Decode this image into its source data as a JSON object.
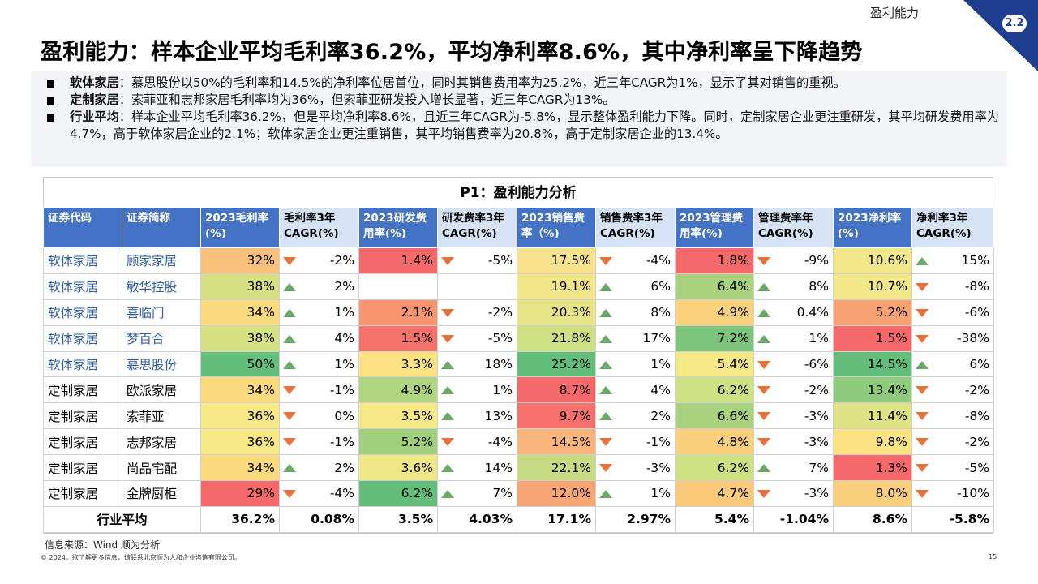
{
  "section_label": "盈利能力",
  "section_number": "2.2",
  "title": "盈利能力：样本企业平均毛利率36.2%，平均净利率8.6%，其中净利率呈下降趋势",
  "summary": [
    {
      "head": "软体家居",
      "text": "：慕思股份以50%的毛利率和14.5%的净利率位居首位，同时其销售费用率为25.2%，近三年CAGR为1%，显示了其对销售的重视。"
    },
    {
      "head": "定制家居",
      "text": "：索菲亚和志邦家居毛利率均为36%，但索菲亚研发投入增长显著，近三年CAGR为13%。"
    },
    {
      "head": "行业平均",
      "text": "：样本企业平均毛利率36.2%，但是平均净利率8.6%，且近三年CAGR为-5.8%，显示整体盈利能力下降。同时，定制家居企业更注重研发，其平均研发费用率为4.7%，高于软体家居企业的2.1%；软体家居企业更注重销售，其平均销售费率为20.8%，高于定制家居企业的13.4%。"
    }
  ],
  "table": {
    "title": "P1：盈利能力分析",
    "headers": [
      "证券代码",
      "证券简称",
      "2023毛利率(%)",
      "毛利率3年CAGR(%)",
      "2023研发费用率(%)",
      "研发费率3年CAGR(%)",
      "2023销售费率（%)",
      "销售费率3年CAGR(%)",
      "2023管理费用率(%)",
      "管理费率年CAGR(%)",
      "2023净利率(%)",
      "净利率3年CAGR(%)"
    ],
    "rows": [
      {
        "code": "软体家居",
        "name": "顾家家居",
        "cells": [
          {
            "v": "32%",
            "bg": "#f8c07a"
          },
          {
            "v": "-2%",
            "dir": "down"
          },
          {
            "v": "1.4%",
            "bg": "#f5696b"
          },
          {
            "v": "-5%",
            "dir": "down"
          },
          {
            "v": "17.5%",
            "bg": "#f9e28c"
          },
          {
            "v": "-4%",
            "dir": "down"
          },
          {
            "v": "1.8%",
            "bg": "#f5696b"
          },
          {
            "v": "-9%",
            "dir": "down"
          },
          {
            "v": "10.6%",
            "bg": "#f2e78a"
          },
          {
            "v": "15%",
            "dir": "up"
          }
        ]
      },
      {
        "code": "软体家居",
        "name": "敏华控股",
        "cells": [
          {
            "v": "38%",
            "bg": "#d6e184"
          },
          {
            "v": "2%",
            "dir": "up"
          },
          {
            "v": "",
            "bg": "#ffffff"
          },
          {
            "v": "",
            "dir": ""
          },
          {
            "v": "19.1%",
            "bg": "#f3e689"
          },
          {
            "v": "6%",
            "dir": "up"
          },
          {
            "v": "6.4%",
            "bg": "#a9d27f"
          },
          {
            "v": "8%",
            "dir": "up"
          },
          {
            "v": "10.7%",
            "bg": "#f2e78a"
          },
          {
            "v": "-8%",
            "dir": "down"
          }
        ]
      },
      {
        "code": "软体家居",
        "name": "喜临门",
        "cells": [
          {
            "v": "34%",
            "bg": "#fbd97f"
          },
          {
            "v": "1%",
            "dir": "up"
          },
          {
            "v": "2.1%",
            "bg": "#f8946f"
          },
          {
            "v": "-2%",
            "dir": "down"
          },
          {
            "v": "20.3%",
            "bg": "#e6e487"
          },
          {
            "v": "8%",
            "dir": "up"
          },
          {
            "v": "4.9%",
            "bg": "#fbd17b"
          },
          {
            "v": "0.4%",
            "dir": "up"
          },
          {
            "v": "5.2%",
            "bg": "#f8a274"
          },
          {
            "v": "-6%",
            "dir": "down"
          }
        ]
      },
      {
        "code": "软体家居",
        "name": "梦百合",
        "cells": [
          {
            "v": "38%",
            "bg": "#d6e184"
          },
          {
            "v": "4%",
            "dir": "up"
          },
          {
            "v": "1.5%",
            "bg": "#f6736c"
          },
          {
            "v": "-5%",
            "dir": "down"
          },
          {
            "v": "21.8%",
            "bg": "#cfdf83"
          },
          {
            "v": "17%",
            "dir": "up"
          },
          {
            "v": "7.2%",
            "bg": "#7cc47c"
          },
          {
            "v": "1%",
            "dir": "up"
          },
          {
            "v": "1.5%",
            "bg": "#f5696b"
          },
          {
            "v": "-38%",
            "dir": "down"
          }
        ]
      },
      {
        "code": "软体家居",
        "name": "慕思股份",
        "cells": [
          {
            "v": "50%",
            "bg": "#63be7b"
          },
          {
            "v": "1%",
            "dir": "up"
          },
          {
            "v": "3.3%",
            "bg": "#fbe383"
          },
          {
            "v": "18%",
            "dir": "up"
          },
          {
            "v": "25.2%",
            "bg": "#63be7b"
          },
          {
            "v": "1%",
            "dir": "up"
          },
          {
            "v": "5.4%",
            "bg": "#f6e887"
          },
          {
            "v": "-6%",
            "dir": "down"
          },
          {
            "v": "14.5%",
            "bg": "#63be7b"
          },
          {
            "v": "6%",
            "dir": "up"
          }
        ]
      },
      {
        "code": "定制家居",
        "name": "欧派家居",
        "cells": [
          {
            "v": "34%",
            "bg": "#fbd97f"
          },
          {
            "v": "-1%",
            "dir": "down"
          },
          {
            "v": "4.9%",
            "bg": "#b0d580"
          },
          {
            "v": "1%",
            "dir": "up"
          },
          {
            "v": "8.7%",
            "bg": "#f5696b"
          },
          {
            "v": "4%",
            "dir": "up"
          },
          {
            "v": "6.2%",
            "bg": "#cfe083"
          },
          {
            "v": "-2%",
            "dir": "down"
          },
          {
            "v": "13.4%",
            "bg": "#8fcb7d"
          },
          {
            "v": "-2%",
            "dir": "down"
          }
        ]
      },
      {
        "code": "定制家居",
        "name": "索菲亚",
        "cells": [
          {
            "v": "36%",
            "bg": "#f6e887"
          },
          {
            "v": "0%",
            "dir": "down"
          },
          {
            "v": "3.5%",
            "bg": "#f6e887"
          },
          {
            "v": "13%",
            "dir": "up"
          },
          {
            "v": "9.7%",
            "bg": "#f6716c"
          },
          {
            "v": "2%",
            "dir": "up"
          },
          {
            "v": "6.6%",
            "bg": "#a9d27f"
          },
          {
            "v": "-3%",
            "dir": "down"
          },
          {
            "v": "11.4%",
            "bg": "#dde284"
          },
          {
            "v": "-8%",
            "dir": "down"
          }
        ]
      },
      {
        "code": "定制家居",
        "name": "志邦家居",
        "cells": [
          {
            "v": "36%",
            "bg": "#f6e887"
          },
          {
            "v": "-1%",
            "dir": "down"
          },
          {
            "v": "5.2%",
            "bg": "#a0d07e"
          },
          {
            "v": "-4%",
            "dir": "down"
          },
          {
            "v": "14.5%",
            "bg": "#f9b47a"
          },
          {
            "v": "-1%",
            "dir": "down"
          },
          {
            "v": "4.8%",
            "bg": "#fbcf7b"
          },
          {
            "v": "-3%",
            "dir": "down"
          },
          {
            "v": "9.8%",
            "bg": "#fbe383"
          },
          {
            "v": "-2%",
            "dir": "down"
          }
        ]
      },
      {
        "code": "定制家居",
        "name": "尚品宅配",
        "cells": [
          {
            "v": "34%",
            "bg": "#fbd97f"
          },
          {
            "v": "2%",
            "dir": "up"
          },
          {
            "v": "3.6%",
            "bg": "#efe686"
          },
          {
            "v": "14%",
            "dir": "up"
          },
          {
            "v": "22.1%",
            "bg": "#c7dc82"
          },
          {
            "v": "-3%",
            "dir": "down"
          },
          {
            "v": "6.2%",
            "bg": "#cfe083"
          },
          {
            "v": "7%",
            "dir": "up"
          },
          {
            "v": "1.3%",
            "bg": "#f5696b"
          },
          {
            "v": "-5%",
            "dir": "down"
          }
        ]
      },
      {
        "code": "定制家居",
        "name": "金牌厨柜",
        "cells": [
          {
            "v": "29%",
            "bg": "#f5696b"
          },
          {
            "v": "-4%",
            "dir": "down"
          },
          {
            "v": "6.2%",
            "bg": "#63be7b"
          },
          {
            "v": "7%",
            "dir": "up"
          },
          {
            "v": "12.0%",
            "bg": "#f8a575"
          },
          {
            "v": "1%",
            "dir": "up"
          },
          {
            "v": "4.7%",
            "bg": "#fbc97a"
          },
          {
            "v": "-3%",
            "dir": "down"
          },
          {
            "v": "8.0%",
            "bg": "#fbcf7d"
          },
          {
            "v": "-10%",
            "dir": "down"
          }
        ]
      }
    ],
    "average": {
      "label": "行业平均",
      "values": [
        "36.2%",
        "0.08%",
        "3.5%",
        "4.03%",
        "17.1%",
        "2.97%",
        "5.4%",
        "-1.04%",
        "8.6%",
        "-5.8%"
      ]
    }
  },
  "source": "信息来源：Wind 顺为分析",
  "copyright": "© 2024。欲了解更多信息，请联系北京顺为人和企业咨询有限公司。",
  "page_number": "15",
  "colors": {
    "header_blue": "#4472c4",
    "header_light": "#d6e2f5",
    "corner_navy": "#1f3d8f",
    "up_arrow": "#6aa86a",
    "down_arrow": "#e8703a"
  }
}
